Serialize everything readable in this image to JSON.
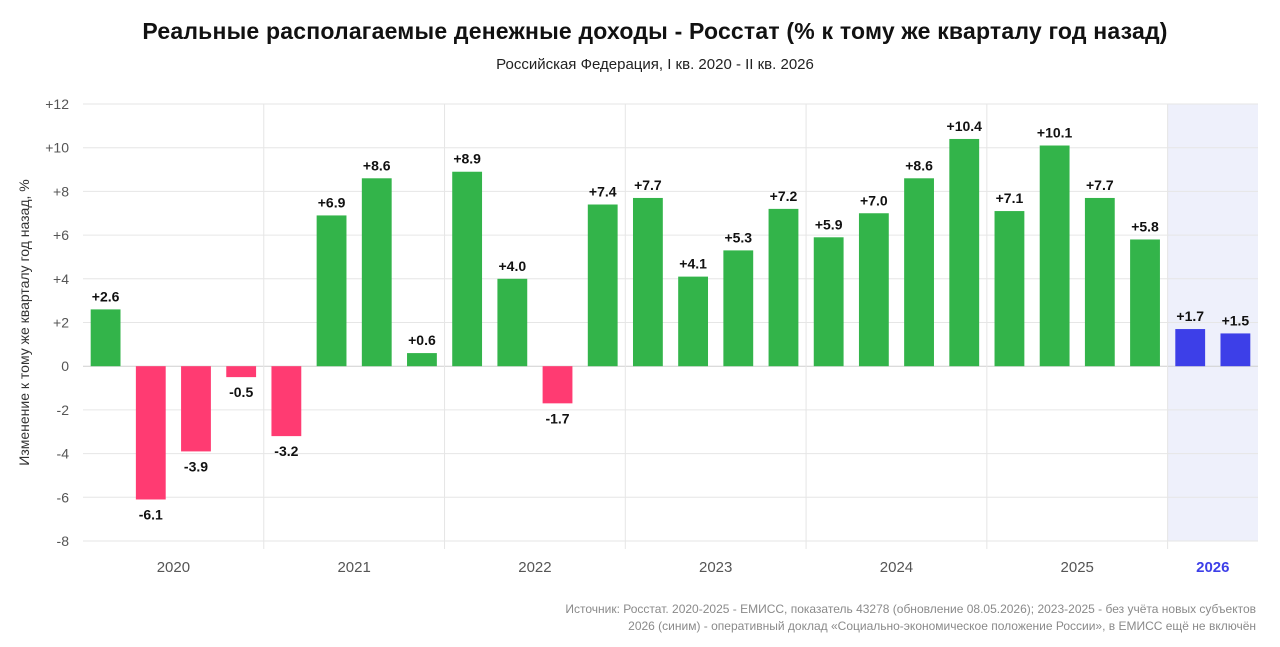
{
  "title": "Реальные располагаемые денежные доходы - Росстат (% к тому же кварталу год назад)",
  "subtitle": "Российская Федерация, I кв. 2020 - II кв. 2026",
  "source_lines": [
    "Источник: Росстат. 2020-2025 - ЕМИСС, показатель 43278 (обновление 08.05.2026); 2023-2025 - без учёта новых субъектов",
    "2026 (синим) - оперативный доклад «Социально-экономическое положение России», в ЕМИСС ещё не включён"
  ],
  "colors": {
    "positive": "#33b44a",
    "negative": "#ff3b72",
    "highlight": "#3d3fe8",
    "highlight_bg": "#eef0fb",
    "grid": "#e6e6e6",
    "axis_text": "#555555"
  },
  "chart_data": {
    "type": "bar",
    "title": "Реальные располагаемые денежные доходы - Росстат (% к тому же кварталу год назад)",
    "ylabel": "Изменение к тому же кварталу год назад, %",
    "xlabel": "",
    "ylim": [
      -8,
      12
    ],
    "yticks": [
      "-8",
      "-6",
      "-4",
      "-2",
      "0",
      "+2",
      "+4",
      "+6",
      "+8",
      "+10",
      "+12"
    ],
    "ytick_values": [
      -8,
      -6,
      -4,
      -2,
      0,
      2,
      4,
      6,
      8,
      10,
      12
    ],
    "grid": true,
    "years": [
      "2020",
      "2021",
      "2022",
      "2023",
      "2024",
      "2025",
      "2026"
    ],
    "highlight_year": "2026",
    "bars": [
      {
        "year": "2020",
        "value": 2.6,
        "label": "+2.6"
      },
      {
        "year": "2020",
        "value": -6.1,
        "label": "-6.1"
      },
      {
        "year": "2020",
        "value": -3.9,
        "label": "-3.9"
      },
      {
        "year": "2020",
        "value": -0.5,
        "label": "-0.5"
      },
      {
        "year": "2021",
        "value": -3.2,
        "label": "-3.2"
      },
      {
        "year": "2021",
        "value": 6.9,
        "label": "+6.9"
      },
      {
        "year": "2021",
        "value": 8.6,
        "label": "+8.6"
      },
      {
        "year": "2021",
        "value": 0.6,
        "label": "+0.6"
      },
      {
        "year": "2022",
        "value": 8.9,
        "label": "+8.9"
      },
      {
        "year": "2022",
        "value": 4.0,
        "label": "+4.0"
      },
      {
        "year": "2022",
        "value": -1.7,
        "label": "-1.7"
      },
      {
        "year": "2022",
        "value": 7.4,
        "label": "+7.4"
      },
      {
        "year": "2023",
        "value": 7.7,
        "label": "+7.7"
      },
      {
        "year": "2023",
        "value": 4.1,
        "label": "+4.1"
      },
      {
        "year": "2023",
        "value": 5.3,
        "label": "+5.3"
      },
      {
        "year": "2023",
        "value": 7.2,
        "label": "+7.2"
      },
      {
        "year": "2024",
        "value": 5.9,
        "label": "+5.9"
      },
      {
        "year": "2024",
        "value": 7.0,
        "label": "+7.0"
      },
      {
        "year": "2024",
        "value": 8.6,
        "label": "+8.6"
      },
      {
        "year": "2024",
        "value": 10.4,
        "label": "+10.4"
      },
      {
        "year": "2025",
        "value": 7.1,
        "label": "+7.1"
      },
      {
        "year": "2025",
        "value": 10.1,
        "label": "+10.1"
      },
      {
        "year": "2025",
        "value": 7.7,
        "label": "+7.7"
      },
      {
        "year": "2025",
        "value": 5.8,
        "label": "+5.8"
      },
      {
        "year": "2026",
        "value": 1.7,
        "label": "+1.7"
      },
      {
        "year": "2026",
        "value": 1.5,
        "label": "+1.5"
      }
    ]
  }
}
